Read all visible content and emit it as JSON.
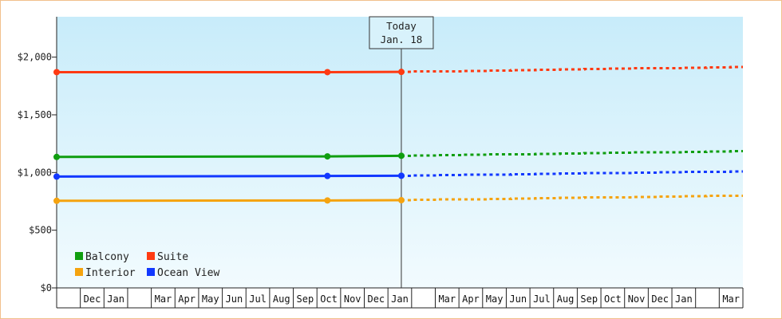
{
  "chart_data": {
    "type": "line",
    "title": "",
    "xlabel": "",
    "ylabel": "",
    "ylim": [
      0,
      2350
    ],
    "y_ticks": [
      {
        "value": 0,
        "label": "$0"
      },
      {
        "value": 500,
        "label": "$500"
      },
      {
        "value": 1000,
        "label": "$1,000"
      },
      {
        "value": 1500,
        "label": "$1,500"
      },
      {
        "value": 2000,
        "label": "$2,000"
      }
    ],
    "x_months": [
      "",
      "Dec",
      "Jan",
      "",
      "Mar",
      "Apr",
      "May",
      "Jun",
      "Jul",
      "Aug",
      "Sep",
      "Oct",
      "Nov",
      "Dec",
      "Jan",
      "",
      "Mar",
      "Apr",
      "May",
      "Jun",
      "Jul",
      "Aug",
      "Sep",
      "Oct",
      "Nov",
      "Dec",
      "Jan",
      "",
      "Mar"
    ],
    "x_month_values": [
      "2018-11",
      "2018-12",
      "2019-01",
      "2019-02",
      "2019-03",
      "2019-04",
      "2019-05",
      "2019-06",
      "2019-07",
      "2019-08",
      "2019-09",
      "2019-10",
      "2019-11",
      "2019-12",
      "2020-01",
      "2020-02",
      "2020-03",
      "2020-04",
      "2020-05",
      "2020-06",
      "2020-07",
      "2020-08",
      "2020-09",
      "2020-10",
      "2020-11",
      "2020-12",
      "2021-01",
      "2021-02",
      "2021-03"
    ],
    "x_range": [
      "2018-11-01",
      "2021-04-01"
    ],
    "today_marker": {
      "label": "Today",
      "date_label": "Jan. 18",
      "date": "2020-01-18"
    },
    "grid": false,
    "legend_position": "bottom-left",
    "series": [
      {
        "name": "Suite",
        "color": "#ff3a12",
        "points": [
          {
            "x": "2018-11-01",
            "y": 1870
          },
          {
            "x": "2019-10-15",
            "y": 1870
          },
          {
            "x": "2020-01-18",
            "y": 1872
          }
        ],
        "forecast": [
          {
            "x": "2020-01-18",
            "y": 1872
          },
          {
            "x": "2021-04-01",
            "y": 1915
          }
        ]
      },
      {
        "name": "Balcony",
        "color": "#109e10",
        "points": [
          {
            "x": "2018-11-01",
            "y": 1135
          },
          {
            "x": "2019-10-15",
            "y": 1140
          },
          {
            "x": "2020-01-18",
            "y": 1145
          }
        ],
        "forecast": [
          {
            "x": "2020-01-18",
            "y": 1145
          },
          {
            "x": "2021-04-01",
            "y": 1185
          }
        ]
      },
      {
        "name": "Ocean View",
        "color": "#1238ff",
        "points": [
          {
            "x": "2018-11-01",
            "y": 965
          },
          {
            "x": "2019-10-15",
            "y": 970
          },
          {
            "x": "2020-01-18",
            "y": 972
          }
        ],
        "forecast": [
          {
            "x": "2020-01-18",
            "y": 972
          },
          {
            "x": "2021-04-01",
            "y": 1010
          }
        ]
      },
      {
        "name": "Interior",
        "color": "#f5a30f",
        "points": [
          {
            "x": "2018-11-01",
            "y": 755
          },
          {
            "x": "2019-10-15",
            "y": 758
          },
          {
            "x": "2020-01-18",
            "y": 760
          }
        ],
        "forecast": [
          {
            "x": "2020-01-18",
            "y": 760
          },
          {
            "x": "2021-04-01",
            "y": 800
          }
        ]
      }
    ],
    "legend_order": [
      "Balcony",
      "Suite",
      "Interior",
      "Ocean View"
    ],
    "colors": {
      "plot_top": "#c8ecfa",
      "plot_bottom": "#f2fbfe",
      "frame_border": "#f2c08c",
      "axis": "#222222"
    }
  }
}
